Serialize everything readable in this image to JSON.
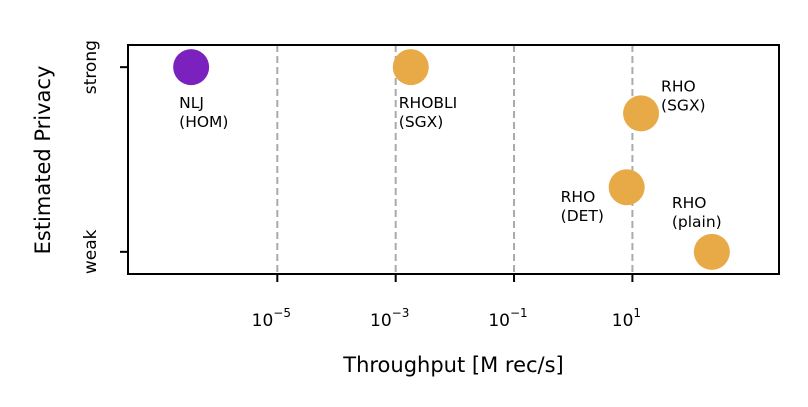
{
  "chart_data": {
    "type": "scatter",
    "xlabel": "Throughput [M rec/s]",
    "ylabel": "Estimated Privacy",
    "x_scale": "log",
    "xlim": [
      3e-08,
      3000
    ],
    "ylim": [
      -0.12,
      1.12
    ],
    "x_ticks": [
      {
        "value": 1e-05,
        "base": "10",
        "exp": "−5"
      },
      {
        "value": 0.001,
        "base": "10",
        "exp": "−3"
      },
      {
        "value": 0.1,
        "base": "10",
        "exp": "−1"
      },
      {
        "value": 10,
        "base": "10",
        "exp": "1"
      }
    ],
    "y_ticks": [
      {
        "value": 1,
        "label": "strong"
      },
      {
        "value": 0,
        "label": "weak"
      }
    ],
    "grid": "x-dashed",
    "points": [
      {
        "id": "nlj-hom",
        "x": 3.5e-07,
        "y": 1.0,
        "color": "#7b22be",
        "label": [
          "NLJ",
          "(HOM)"
        ],
        "label_pos": "below"
      },
      {
        "id": "rhobli-sgx",
        "x": 0.0018,
        "y": 1.0,
        "color": "#e8aa47",
        "label": [
          "RHOBLI",
          "(SGX)"
        ],
        "label_pos": "below"
      },
      {
        "id": "rho-sgx",
        "x": 14,
        "y": 0.75,
        "color": "#e8aa47",
        "label": [
          "RHO",
          "(SGX)"
        ],
        "label_pos": "upper-right"
      },
      {
        "id": "rho-det",
        "x": 8,
        "y": 0.35,
        "color": "#e8aa47",
        "label": [
          "RHO",
          "(DET)"
        ],
        "label_pos": "left"
      },
      {
        "id": "rho-plain",
        "x": 220,
        "y": 0.0,
        "color": "#e8aa47",
        "label": [
          "RHO",
          "(plain)"
        ],
        "label_pos": "above"
      }
    ]
  }
}
